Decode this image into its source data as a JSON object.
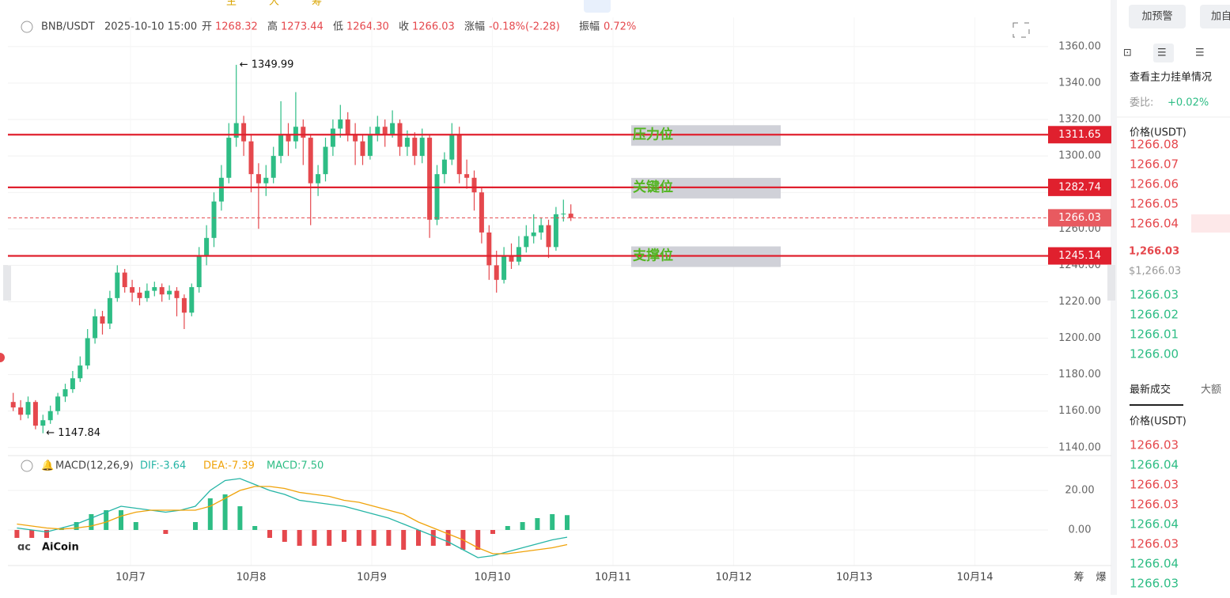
{
  "toolbar": [
    "主",
    "大",
    "筹"
  ],
  "header": {
    "symbol": "BNB/USDT",
    "time": "2025-10-10 15:00",
    "fields": [
      {
        "label": "开",
        "value": "1268.32"
      },
      {
        "label": "高",
        "value": "1273.44"
      },
      {
        "label": "低",
        "value": "1264.30"
      },
      {
        "label": "收",
        "value": "1266.03"
      },
      {
        "label": "涨幅",
        "value": "-0.18%(-2.28)"
      },
      {
        "label": "振幅",
        "value": "0.72%"
      }
    ]
  },
  "chart_data": [
    {
      "type": "candlestick",
      "colors": {
        "up": "#2ebd85",
        "down": "#e5484d"
      },
      "grid": true,
      "ylim": [
        1136,
        1376
      ],
      "yticks": [
        {
          "value": 1140,
          "label": "1140.00"
        },
        {
          "value": 1160,
          "label": "1160.00"
        },
        {
          "value": 1180,
          "label": "1180.00"
        },
        {
          "value": 1200,
          "label": "1200.00"
        },
        {
          "value": 1220,
          "label": "1220.00"
        },
        {
          "value": 1240,
          "label": "1240.00"
        },
        {
          "value": 1260,
          "label": "1260.00"
        },
        {
          "value": 1280,
          "label": "1280.00"
        },
        {
          "value": 1300,
          "label": "1300.00"
        },
        {
          "value": 1320,
          "label": "1320.00"
        },
        {
          "value": 1340,
          "label": "1340.00"
        },
        {
          "value": 1360,
          "label": "1360.00"
        }
      ],
      "x_labels": [
        "10月7",
        "10月8",
        "10月9",
        "10月10",
        "10月11",
        "10月12",
        "10月13",
        "10月14"
      ],
      "candles": [
        [
          1165,
          1170,
          1160,
          1162
        ],
        [
          1162,
          1166,
          1155,
          1158
        ],
        [
          1158,
          1168,
          1156,
          1165
        ],
        [
          1165,
          1166,
          1150,
          1152
        ],
        [
          1152,
          1158,
          1147.84,
          1155
        ],
        [
          1155,
          1163,
          1153,
          1160
        ],
        [
          1160,
          1170,
          1158,
          1168
        ],
        [
          1168,
          1175,
          1165,
          1172
        ],
        [
          1172,
          1182,
          1170,
          1178
        ],
        [
          1178,
          1190,
          1176,
          1185
        ],
        [
          1185,
          1205,
          1183,
          1200
        ],
        [
          1200,
          1216,
          1197,
          1212
        ],
        [
          1212,
          1215,
          1202,
          1208
        ],
        [
          1208,
          1226,
          1205,
          1222
        ],
        [
          1222,
          1240,
          1220,
          1236
        ],
        [
          1236,
          1238,
          1225,
          1228
        ],
        [
          1228,
          1232,
          1220,
          1225
        ],
        [
          1225,
          1228,
          1218,
          1222
        ],
        [
          1222,
          1230,
          1220,
          1226
        ],
        [
          1226,
          1231,
          1223,
          1228
        ],
        [
          1228,
          1230,
          1220,
          1224
        ],
        [
          1224,
          1229,
          1221,
          1226
        ],
        [
          1226,
          1228,
          1212,
          1222
        ],
        [
          1222,
          1224,
          1205,
          1214
        ],
        [
          1214,
          1230,
          1212,
          1228
        ],
        [
          1228,
          1250,
          1225,
          1245
        ],
        [
          1245,
          1262,
          1240,
          1255
        ],
        [
          1255,
          1280,
          1250,
          1275
        ],
        [
          1275,
          1295,
          1270,
          1288
        ],
        [
          1288,
          1318,
          1285,
          1310
        ],
        [
          1310,
          1349.99,
          1305,
          1318
        ],
        [
          1318,
          1322,
          1300,
          1308
        ],
        [
          1308,
          1312,
          1280,
          1290
        ],
        [
          1290,
          1296,
          1260,
          1285
        ],
        [
          1285,
          1295,
          1278,
          1288
        ],
        [
          1288,
          1305,
          1285,
          1300
        ],
        [
          1300,
          1330,
          1296,
          1312
        ],
        [
          1312,
          1318,
          1300,
          1308
        ],
        [
          1308,
          1335,
          1304,
          1316
        ],
        [
          1316,
          1320,
          1295,
          1310
        ],
        [
          1310,
          1312,
          1262,
          1285
        ],
        [
          1285,
          1295,
          1278,
          1290
        ],
        [
          1290,
          1310,
          1286,
          1305
        ],
        [
          1305,
          1320,
          1300,
          1315
        ],
        [
          1315,
          1328,
          1310,
          1320
        ],
        [
          1320,
          1324,
          1308,
          1312
        ],
        [
          1312,
          1318,
          1295,
          1308
        ],
        [
          1308,
          1312,
          1295,
          1300
        ],
        [
          1300,
          1316,
          1298,
          1312
        ],
        [
          1312,
          1322,
          1308,
          1316
        ],
        [
          1316,
          1320,
          1305,
          1312
        ],
        [
          1312,
          1325,
          1310,
          1318
        ],
        [
          1318,
          1320,
          1300,
          1305
        ],
        [
          1305,
          1314,
          1300,
          1310
        ],
        [
          1310,
          1313,
          1295,
          1300
        ],
        [
          1300,
          1315,
          1296,
          1310
        ],
        [
          1310,
          1312,
          1255,
          1265
        ],
        [
          1265,
          1295,
          1262,
          1290
        ],
        [
          1290,
          1302,
          1285,
          1298
        ],
        [
          1298,
          1318,
          1295,
          1312
        ],
        [
          1312,
          1316,
          1285,
          1290
        ],
        [
          1290,
          1298,
          1282,
          1288
        ],
        [
          1288,
          1292,
          1270,
          1280
        ],
        [
          1280,
          1283,
          1252,
          1258
        ],
        [
          1258,
          1262,
          1232,
          1240
        ],
        [
          1240,
          1248,
          1225,
          1232
        ],
        [
          1232,
          1250,
          1230,
          1245
        ],
        [
          1245,
          1252,
          1238,
          1242
        ],
        [
          1242,
          1256,
          1240,
          1250
        ],
        [
          1250,
          1262,
          1247,
          1256
        ],
        [
          1256,
          1268,
          1252,
          1258
        ],
        [
          1258,
          1266,
          1254,
          1262
        ],
        [
          1262,
          1265,
          1244,
          1250
        ],
        [
          1250,
          1272,
          1248,
          1268
        ],
        [
          1268,
          1276,
          1264,
          1268.32
        ],
        [
          1268.32,
          1273.44,
          1264.3,
          1266.03
        ]
      ],
      "annotations": [
        1349.99,
        1147.84
      ],
      "last_price": 1266.03,
      "levels": [
        {
          "label": "压力位",
          "value": 1311.65
        },
        {
          "label": "关键位",
          "value": 1282.74
        },
        {
          "label": "支撑位",
          "value": 1245.14
        }
      ],
      "level_color": "#e0202e"
    },
    {
      "type": "macd",
      "title": "MACD(12,26,9)",
      "ylim": [
        -16.8,
        36
      ],
      "yticks": [
        {
          "value": 0,
          "label": "0.00"
        },
        {
          "value": 20,
          "label": "20.00"
        }
      ],
      "series": [
        {
          "name": "DIF:-3.64",
          "color": "#26b5a6",
          "values": [
            1,
            0,
            -1,
            1,
            3,
            6,
            9,
            12,
            11,
            10,
            9,
            10,
            12,
            20,
            25,
            26,
            23,
            20,
            18,
            15,
            14,
            13,
            12,
            10,
            8,
            6,
            3,
            0,
            -3,
            -6,
            -10,
            -14,
            -13,
            -11,
            -9,
            -7,
            -5,
            -3.64
          ]
        },
        {
          "name": "DEA:-7.39",
          "color": "#f0a30a",
          "values": [
            3,
            2,
            1,
            0.5,
            1,
            2,
            4,
            7,
            9,
            10,
            10,
            10,
            10,
            12,
            16,
            20,
            22,
            22,
            21,
            19,
            18,
            17,
            15,
            14,
            12,
            10,
            8,
            4,
            1,
            -2,
            -5,
            -9,
            -12,
            -12,
            -11,
            -10,
            -9,
            -7.39
          ]
        }
      ],
      "histogram": {
        "name": "MACD:7.50",
        "up_color": "#2ebd85",
        "down_color": "#e5484d",
        "values": [
          -4,
          -4,
          -4,
          1,
          4,
          8,
          10,
          10,
          4,
          0,
          -2,
          0,
          4,
          16,
          18,
          12,
          2,
          -4,
          -6,
          -8,
          -8,
          -8,
          -6,
          -8,
          -8,
          -8,
          -10,
          -8,
          -8,
          -8,
          -10,
          -10,
          -2,
          2,
          4,
          6,
          8,
          7.5
        ]
      }
    }
  ],
  "watermark": "AiCoin",
  "corner": [
    "筹",
    "爆"
  ],
  "sidebar": {
    "buttons": [
      "加预警",
      "加自"
    ],
    "depth_title": "查看主力挂单情况",
    "ratio_label": "委比:",
    "ratio_value": "+0.02%",
    "price_header": "价格(USDT)",
    "asks": [
      "1266.08",
      "1266.07",
      "1266.06",
      "1266.05",
      "1266.04"
    ],
    "last": "1,266.03",
    "last_usd": "$1,266.03",
    "bids": [
      "1266.03",
      "1266.02",
      "1266.01",
      "1266.00"
    ],
    "tabs": [
      "最新成交",
      "大额"
    ],
    "trades_header": "价格(USDT)",
    "trades": [
      {
        "price": "1266.03",
        "color": "#e5484d"
      },
      {
        "price": "1266.04",
        "color": "#2ebd85"
      },
      {
        "price": "1266.03",
        "color": "#e5484d"
      },
      {
        "price": "1266.03",
        "color": "#e5484d"
      },
      {
        "price": "1266.04",
        "color": "#2ebd85"
      },
      {
        "price": "1266.03",
        "color": "#e5484d"
      },
      {
        "price": "1266.04",
        "color": "#2ebd85"
      },
      {
        "price": "1266.03",
        "color": "#2ebd85"
      }
    ]
  }
}
